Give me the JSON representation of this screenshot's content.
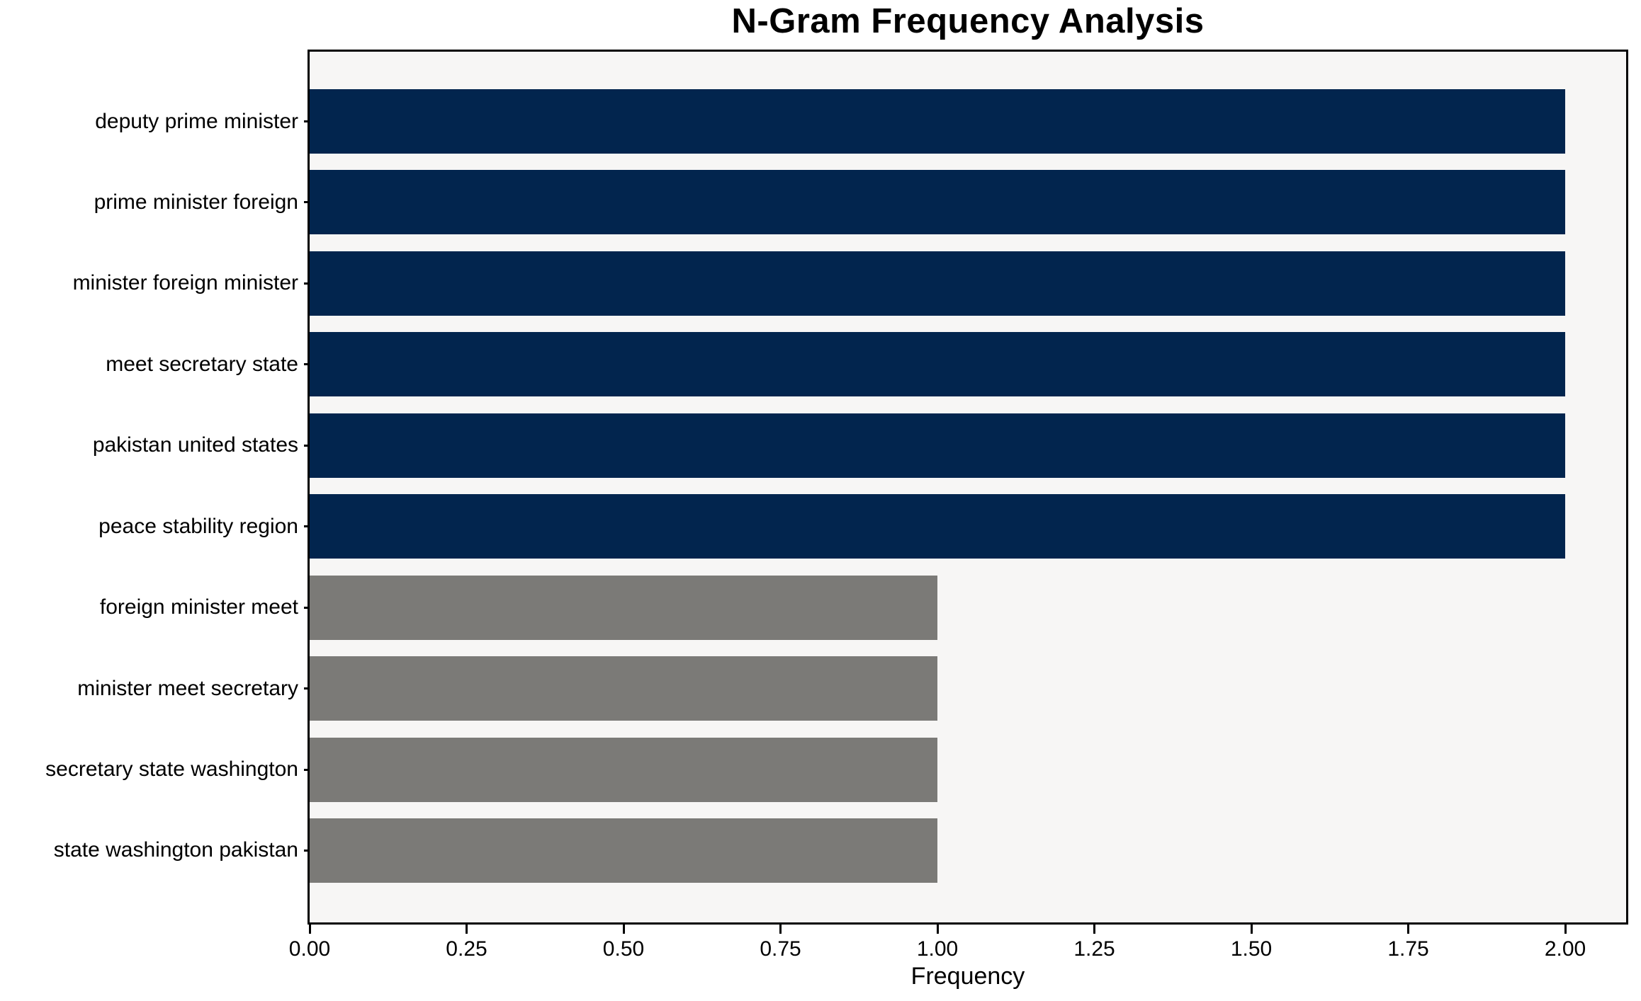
{
  "title": "N-Gram Frequency Analysis",
  "x_axis": {
    "label": "Frequency",
    "tick_labels": [
      "0.00",
      "0.25",
      "0.50",
      "0.75",
      "1.00",
      "1.25",
      "1.50",
      "1.75",
      "2.00"
    ]
  },
  "colors": {
    "bar_high": "#02254e",
    "bar_low": "#7b7a77",
    "plot_background": "#f7f6f5",
    "figure_background": "#ffffff",
    "spine": "#000000",
    "text": "#000000"
  },
  "chart_data": {
    "type": "bar",
    "orientation": "horizontal",
    "title": "N-Gram Frequency Analysis",
    "xlabel": "Frequency",
    "ylabel": "",
    "categories": [
      "deputy prime minister",
      "prime minister foreign",
      "minister foreign minister",
      "meet secretary state",
      "pakistan united states",
      "peace stability region",
      "foreign minister meet",
      "minister meet secretary",
      "secretary state washington",
      "state washington pakistan"
    ],
    "values": [
      2,
      2,
      2,
      2,
      2,
      2,
      1,
      1,
      1,
      1
    ],
    "bar_colors": [
      "#02254e",
      "#02254e",
      "#02254e",
      "#02254e",
      "#02254e",
      "#02254e",
      "#7b7a77",
      "#7b7a77",
      "#7b7a77",
      "#7b7a77"
    ],
    "xlim": [
      0,
      2.097
    ],
    "x_tick_values": [
      0,
      0.25,
      0.5,
      0.75,
      1.0,
      1.25,
      1.5,
      1.75,
      2.0
    ],
    "grid": false,
    "legend": null,
    "bars_total": 10
  }
}
